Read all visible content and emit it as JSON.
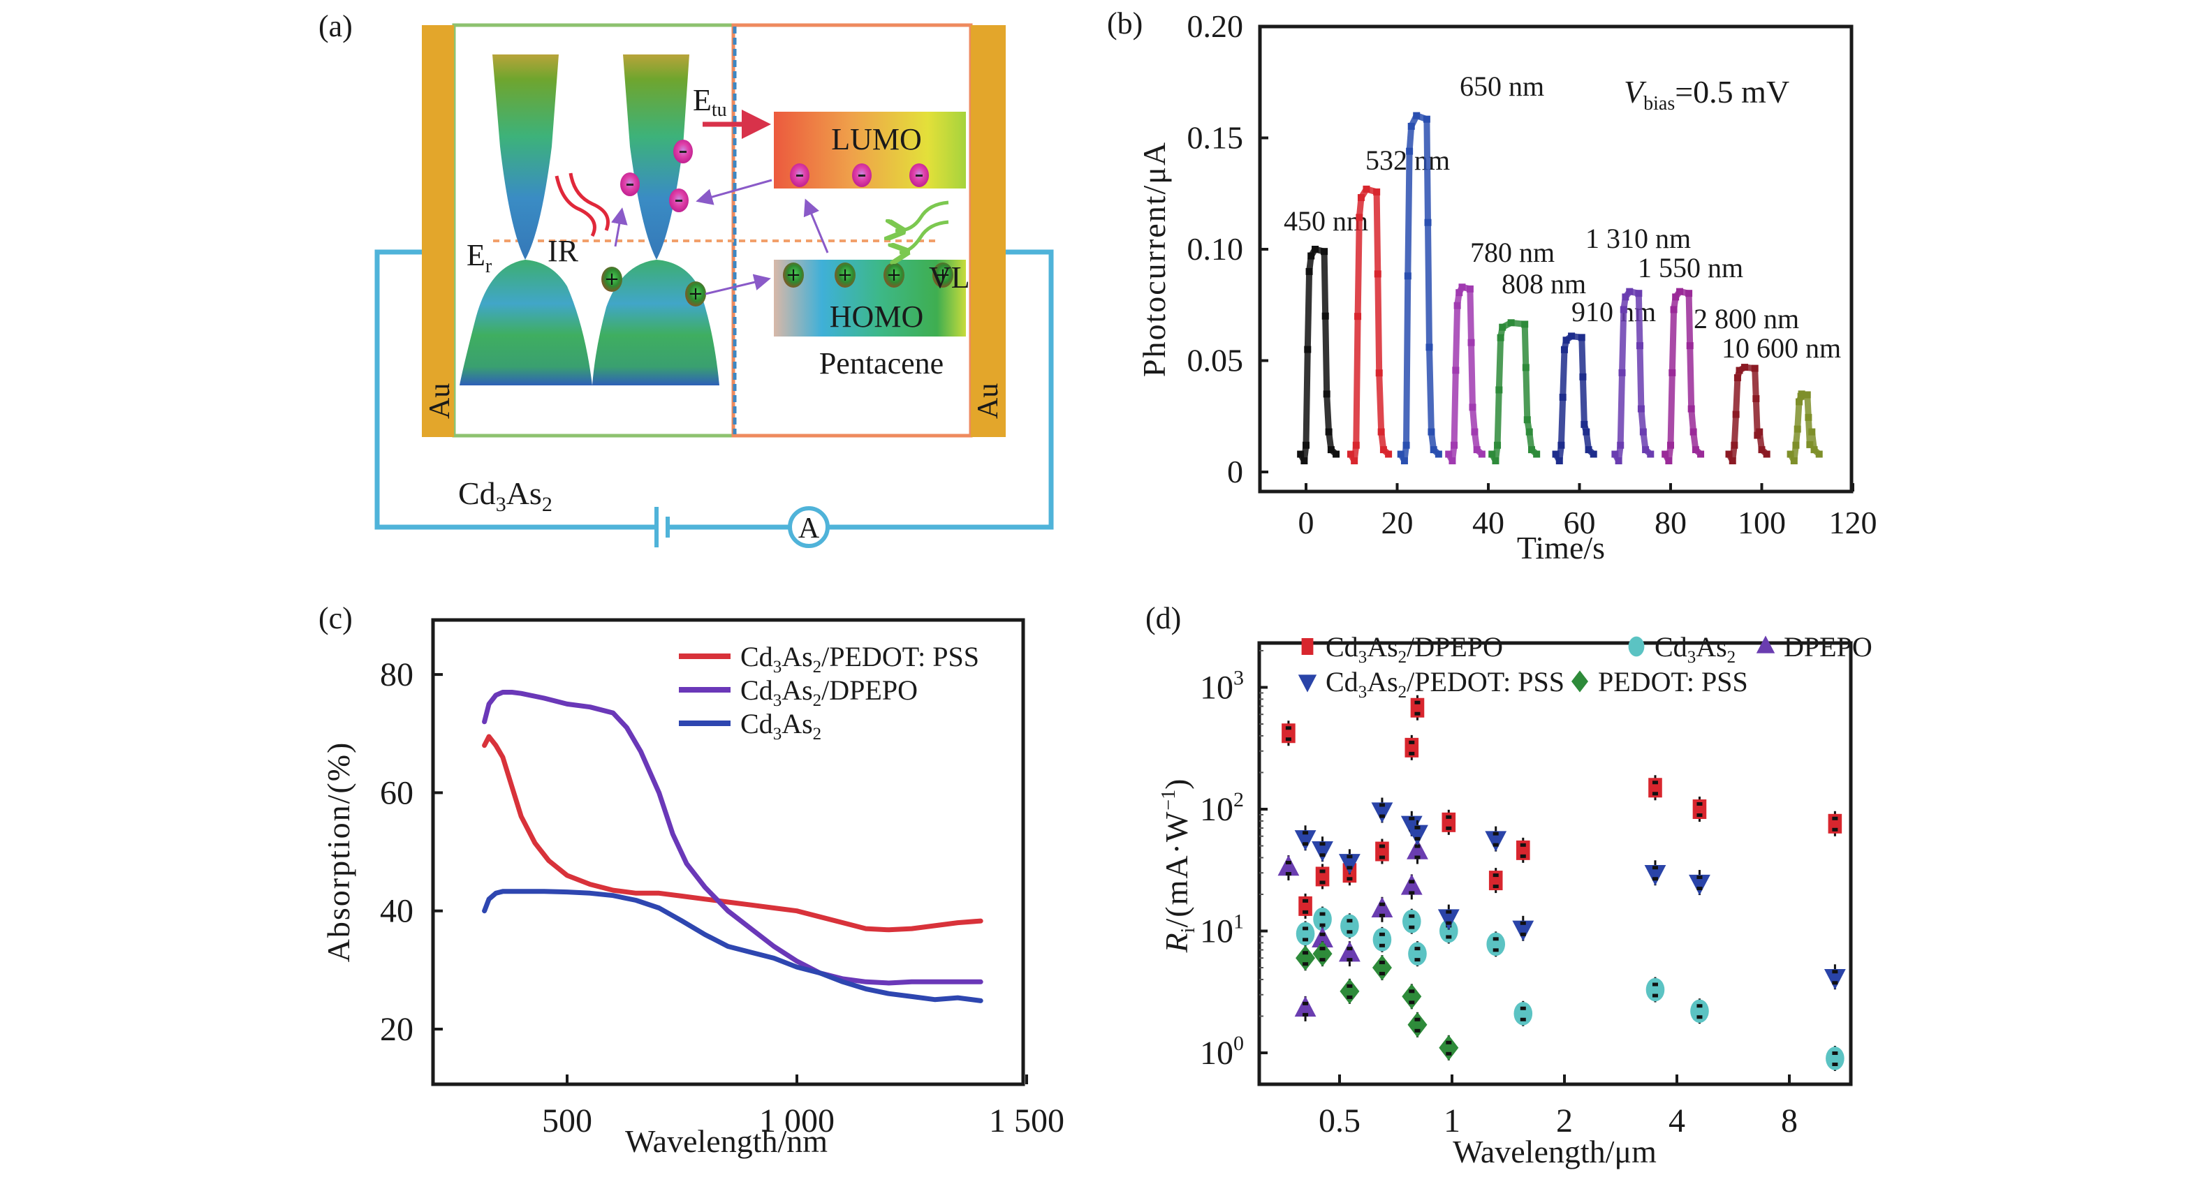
{
  "panels": {
    "a": {
      "label": "(a)",
      "electrode_left": "Au",
      "electrode_right": "Au",
      "material_left": "Cd3As2",
      "material_left_sub": [
        "Cd",
        "3",
        "As",
        "2"
      ],
      "material_right": "Pentacene",
      "lumo": "LUMO",
      "homo": "HOMO",
      "e_tu": [
        "E",
        "tu"
      ],
      "e_r": [
        "E",
        "r"
      ],
      "ir": "IR",
      "vl": "VL",
      "ammeter": "A",
      "colors": {
        "au": "#E3A62B",
        "wire": "#4FB3D9",
        "left_frame": "#8DC26F",
        "right_frame": "#EE8A5E",
        "fermi": "#F2A06B",
        "divider": "#3C86C2"
      }
    },
    "b": {
      "label": "(b)"
    },
    "c": {
      "label": "(c)"
    },
    "d": {
      "label": "(d)"
    }
  },
  "chart_data": [
    {
      "id": "b",
      "type": "line",
      "title": "",
      "xlabel": "Time/s",
      "ylabel": "Photocurrent/μA",
      "xlim": [
        -10,
        120
      ],
      "ylim": [
        -0.009,
        0.2
      ],
      "xticks": [
        0,
        20,
        40,
        60,
        80,
        100,
        120
      ],
      "xtick_labels": [
        "0",
        "20",
        "40",
        "60",
        "80",
        "100",
        "120"
      ],
      "yticks": [
        0,
        0.05,
        0.1,
        0.15,
        0.2
      ],
      "ytick_labels": [
        "0",
        "0.05",
        "0.10",
        "0.15",
        "0.20"
      ],
      "grid": false,
      "annotation": {
        "main": "V",
        "sub": "bias",
        "rest": "=0.5 mV"
      },
      "baseline": 0.008,
      "series": [
        {
          "name": "450 nm",
          "color": "#111111",
          "t_on": 0,
          "t_off": 4,
          "peak": 0.1,
          "label_at": [
            0,
            0.104
          ]
        },
        {
          "name": "532 nm",
          "color": "#D8262E",
          "t_on": 11,
          "t_off": 15.5,
          "peak": 0.127,
          "label_at": [
            11,
            0.133
          ]
        },
        {
          "name": "650 nm",
          "color": "#2A4FB0",
          "t_on": 22,
          "t_off": 26.5,
          "peak": 0.16,
          "label_at": [
            27,
            0.17
          ]
        },
        {
          "name": "780 nm",
          "color": "#A03AB0",
          "t_on": 32.5,
          "t_off": 36,
          "peak": 0.083,
          "label_at": [
            40,
            0.088
          ]
        },
        {
          "name": "808 nm",
          "color": "#2E8B3A",
          "t_on": 42,
          "t_off": 48,
          "peak": 0.067,
          "label_at": [
            50,
            0.075
          ]
        },
        {
          "name": "910 nm",
          "color": "#1E2D8C",
          "t_on": 56,
          "t_off": 60.5,
          "peak": 0.061,
          "label_at": [
            64,
            0.065
          ]
        },
        {
          "name": "1 310 nm",
          "color": "#6A3DB0",
          "t_on": 69,
          "t_off": 73,
          "peak": 0.081,
          "label_at": [
            76,
            0.095
          ]
        },
        {
          "name": "1 550 nm",
          "color": "#9A2A98",
          "t_on": 80,
          "t_off": 84,
          "peak": 0.081,
          "label_at": [
            82,
            0.082
          ]
        },
        {
          "name": "2 800 nm",
          "color": "#8B1A24",
          "t_on": 94,
          "t_off": 98.5,
          "peak": 0.047,
          "label_at": [
            100,
            0.059
          ]
        },
        {
          "name": "10 600 nm",
          "color": "#7E8F2A",
          "t_on": 107.5,
          "t_off": 110,
          "peak": 0.035,
          "label_at": [
            108,
            0.05
          ]
        }
      ]
    },
    {
      "id": "c",
      "type": "line",
      "title": "",
      "xlabel": "Wavelength/nm",
      "ylabel": "Absorption/(%)",
      "xlim": [
        208,
        1492
      ],
      "ylim": [
        8.6,
        87.6
      ],
      "xticks": [
        500,
        1000,
        1500
      ],
      "xtick_labels": [
        "500",
        "1 000",
        "1 500"
      ],
      "yticks": [
        20,
        40,
        60,
        80
      ],
      "ytick_labels": [
        "20",
        "40",
        "60",
        "80"
      ],
      "grid": false,
      "legend": "top-right",
      "series": [
        {
          "name": "Cd3As2/PEDOT: PSS",
          "legend_parts": [
            "Cd",
            "3",
            "As",
            "2",
            "/PEDOT: PSS"
          ],
          "color": "#D8323A",
          "x": [
            320,
            330,
            345,
            360,
            380,
            400,
            430,
            460,
            500,
            550,
            600,
            650,
            700,
            750,
            800,
            850,
            900,
            950,
            1000,
            1050,
            1100,
            1150,
            1200,
            1250,
            1300,
            1350,
            1400
          ],
          "y": [
            68,
            69.5,
            68,
            66,
            61,
            56,
            51.5,
            48.5,
            46,
            44.5,
            43.5,
            43,
            43,
            42.5,
            42,
            41.5,
            41,
            40.5,
            40,
            39,
            38,
            37,
            36.8,
            37,
            37.5,
            38,
            38.3
          ]
        },
        {
          "name": "Cd3As2/DPEPO",
          "legend_parts": [
            "Cd",
            "3",
            "As",
            "2",
            "/DPEPO"
          ],
          "color": "#6A38B8",
          "x": [
            320,
            330,
            345,
            360,
            380,
            400,
            450,
            500,
            550,
            600,
            630,
            660,
            700,
            730,
            760,
            800,
            850,
            900,
            950,
            1000,
            1050,
            1100,
            1150,
            1200,
            1250,
            1300,
            1350,
            1400
          ],
          "y": [
            72,
            75,
            76.5,
            77,
            77,
            76.8,
            76,
            75,
            74.5,
            73.5,
            71,
            67,
            60,
            53,
            48,
            44,
            40,
            37,
            34,
            31.5,
            29.5,
            28.5,
            28,
            27.8,
            28,
            28,
            28,
            28
          ]
        },
        {
          "name": "Cd3As2",
          "legend_parts": [
            "Cd",
            "3",
            "As",
            "2",
            ""
          ],
          "color": "#2E46B0",
          "x": [
            320,
            330,
            345,
            360,
            400,
            450,
            500,
            550,
            600,
            650,
            700,
            750,
            800,
            850,
            900,
            950,
            1000,
            1050,
            1100,
            1150,
            1200,
            1250,
            1300,
            1350,
            1400
          ],
          "y": [
            40,
            42,
            43,
            43.3,
            43.3,
            43.3,
            43.2,
            43,
            42.6,
            41.8,
            40.5,
            38.3,
            36,
            34,
            33,
            32,
            30.5,
            29.5,
            28,
            26.8,
            26,
            25.5,
            25,
            25.3,
            24.8
          ]
        }
      ]
    },
    {
      "id": "d",
      "type": "scatter",
      "title": "",
      "xlabel": "Wavelength/μm",
      "ylabel_parts": [
        "R",
        "i",
        "/(mA·W",
        "−1",
        ")"
      ],
      "xscale": "log2",
      "yscale": "log10",
      "xlim": [
        0.3,
        12.2
      ],
      "ylim": [
        0.6,
        3000
      ],
      "xticks": [
        0.5,
        1,
        2,
        4,
        8
      ],
      "xtick_labels": [
        "0.5",
        "1",
        "2",
        "4",
        "8"
      ],
      "yticks": [
        1,
        10,
        100,
        1000
      ],
      "ytick_labels": [
        [
          "10",
          "0"
        ],
        [
          "10",
          "1"
        ],
        [
          "10",
          "2"
        ],
        [
          "10",
          "3"
        ]
      ],
      "grid": false,
      "legend": "top",
      "series": [
        {
          "name": "Cd3As2/DPEPO",
          "legend_parts": [
            "Cd",
            "3",
            "As",
            "2",
            "/DPEPO"
          ],
          "marker": "square",
          "color": "#D8262E",
          "x": [
            0.365,
            0.405,
            0.45,
            0.532,
            0.65,
            0.78,
            0.808,
            0.98,
            1.31,
            1.55,
            3.5,
            4.6,
            10.6
          ],
          "y": [
            420,
            16,
            28,
            30,
            45,
            320,
            680,
            78,
            26,
            46,
            150,
            100,
            76
          ]
        },
        {
          "name": "Cd3As2",
          "legend_parts": [
            "Cd",
            "3",
            "As",
            "2",
            ""
          ],
          "marker": "circle",
          "color": "#5BC3C3",
          "x": [
            0.405,
            0.45,
            0.532,
            0.65,
            0.78,
            0.808,
            0.98,
            1.31,
            1.55,
            3.5,
            4.6,
            10.6
          ],
          "y": [
            9.5,
            12.5,
            11,
            8.5,
            12,
            6.5,
            10,
            7.8,
            2.1,
            3.3,
            2.2,
            0.9
          ]
        },
        {
          "name": "DPEPO",
          "legend_parts": [
            "DPEPO"
          ],
          "marker": "triangle-up",
          "color": "#6A3DB0",
          "x": [
            0.365,
            0.405,
            0.45,
            0.532,
            0.65,
            0.78,
            0.808
          ],
          "y": [
            33,
            2.3,
            8.5,
            6.5,
            15,
            23,
            45
          ]
        },
        {
          "name": "Cd3As2/PEDOT: PSS",
          "legend_parts": [
            "Cd",
            "3",
            "As",
            "2",
            "/PEDOT: PSS"
          ],
          "marker": "triangle-down",
          "color": "#2A44A8",
          "x": [
            0.405,
            0.45,
            0.532,
            0.65,
            0.78,
            0.808,
            0.98,
            1.31,
            1.55,
            3.5,
            4.6,
            10.6
          ],
          "y": [
            58,
            47,
            37,
            98,
            76,
            64,
            13,
            57,
            10.5,
            30,
            25,
            4.2
          ]
        },
        {
          "name": "PEDOT: PSS",
          "legend_parts": [
            "PEDOT: PSS"
          ],
          "marker": "diamond",
          "color": "#2E8B3A",
          "x": [
            0.405,
            0.45,
            0.532,
            0.65,
            0.78,
            0.808,
            0.98
          ],
          "y": [
            6,
            6.5,
            3.2,
            5,
            2.9,
            1.7,
            1.1
          ]
        }
      ]
    }
  ]
}
